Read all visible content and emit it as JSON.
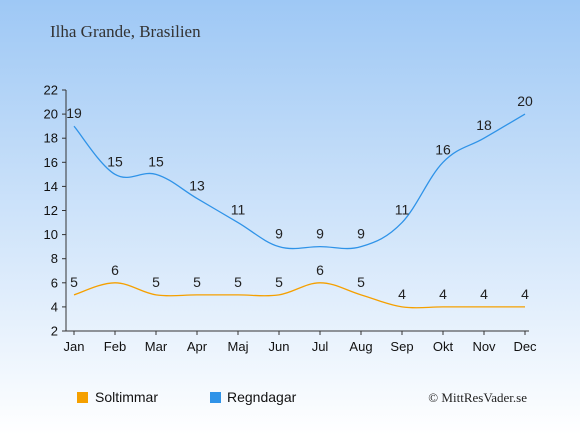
{
  "title": "Ilha Grande, Brasilien",
  "copyright": "© MittResVader.se",
  "colors": {
    "background_top": "#9ec8f5",
    "background_bottom": "#ffffff",
    "sun": "#f5a000",
    "rain": "#2f93e8",
    "text": "#333333"
  },
  "chart_data": {
    "type": "line",
    "categories": [
      "Jan",
      "Feb",
      "Mar",
      "Apr",
      "Maj",
      "Jun",
      "Jul",
      "Aug",
      "Sep",
      "Okt",
      "Nov",
      "Dec"
    ],
    "series": [
      {
        "name": "Soltimmar",
        "color": "#f5a000",
        "values": [
          5,
          6,
          5,
          5,
          5,
          5,
          6,
          5,
          4,
          4,
          4,
          4
        ]
      },
      {
        "name": "Regndagar",
        "color": "#2f93e8",
        "values": [
          19,
          15,
          15,
          13,
          11,
          9,
          9,
          9,
          11,
          16,
          18,
          20
        ]
      }
    ],
    "ylim": [
      2,
      22
    ],
    "yticks": [
      2,
      4,
      6,
      8,
      10,
      12,
      14,
      16,
      18,
      20,
      22
    ],
    "grid": false,
    "legend": "bottom-left"
  }
}
